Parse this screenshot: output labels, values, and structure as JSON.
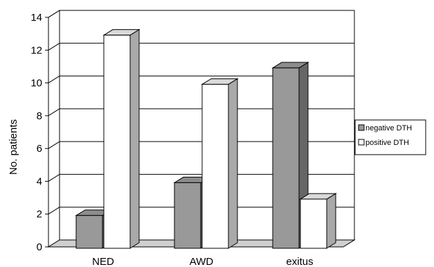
{
  "chart_data": {
    "type": "bar",
    "categories": [
      "NED",
      "AWD",
      "exitus"
    ],
    "series": [
      {
        "name": "negative DTH",
        "values": [
          2,
          4,
          11
        ],
        "color": "#999999",
        "dark": "#666666",
        "top": "#8c8c8c"
      },
      {
        "name": "positive DTH",
        "values": [
          13,
          10,
          3
        ],
        "color": "#ffffff",
        "dark": "#a9a9a9",
        "top": "#d9d9d9"
      }
    ],
    "ylabel": "No. patients",
    "ylim": [
      0,
      14
    ],
    "yticks": [
      0,
      2,
      4,
      6,
      8,
      10,
      12,
      14
    ],
    "grid": true,
    "legend": "right"
  }
}
